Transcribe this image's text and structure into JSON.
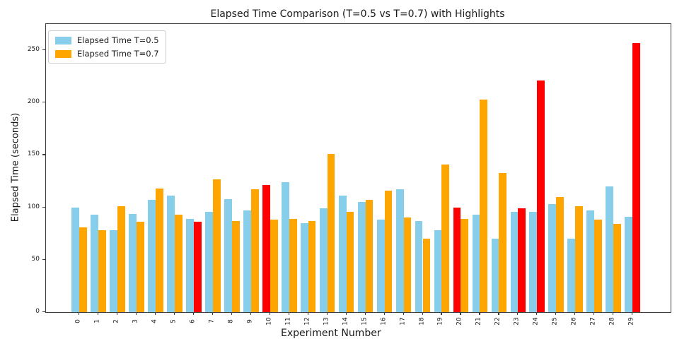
{
  "chart_data": {
    "type": "bar",
    "title": "Elapsed Time Comparison (T=0.5 vs T=0.7) with Highlights",
    "xlabel": "Experiment Number",
    "ylabel": "Elapsed Time (seconds)",
    "categories": [
      "0",
      "1",
      "2",
      "3",
      "4",
      "5",
      "6",
      "7",
      "8",
      "9",
      "10",
      "11",
      "12",
      "13",
      "14",
      "15",
      "16",
      "17",
      "18",
      "19",
      "20",
      "21",
      "22",
      "23",
      "24",
      "25",
      "26",
      "27",
      "28",
      "29"
    ],
    "series": [
      {
        "name": "Elapsed Time T=0.5",
        "color": "#87CEEB",
        "values": [
          100,
          93,
          78,
          94,
          107,
          111,
          89,
          96,
          108,
          97,
          121,
          124,
          85,
          99,
          111,
          105,
          88,
          117,
          87,
          78,
          100,
          93,
          70,
          96,
          96,
          103,
          70,
          97,
          120,
          91
        ]
      },
      {
        "name": "Elapsed Time T=0.7",
        "color": "#FFA500",
        "values": [
          81,
          78,
          101,
          86,
          118,
          93,
          86,
          127,
          87,
          117,
          88,
          89,
          87,
          151,
          96,
          107,
          116,
          90,
          70,
          141,
          89,
          203,
          133,
          99,
          221,
          110,
          101,
          88,
          84,
          257
        ]
      }
    ],
    "highlight": {
      "color": "#FF0000",
      "bars": [
        {
          "experiment": 6,
          "series_index": 1
        },
        {
          "experiment": 10,
          "series_index": 0
        },
        {
          "experiment": 20,
          "series_index": 0
        },
        {
          "experiment": 23,
          "series_index": 1
        },
        {
          "experiment": 24,
          "series_index": 1
        },
        {
          "experiment": 29,
          "series_index": 1
        }
      ]
    },
    "ylim": [
      0,
      275
    ],
    "yticks": [
      0,
      50,
      100,
      150,
      200,
      250
    ],
    "legend_position": "upper left",
    "grid": false,
    "background": "#ffffff"
  }
}
